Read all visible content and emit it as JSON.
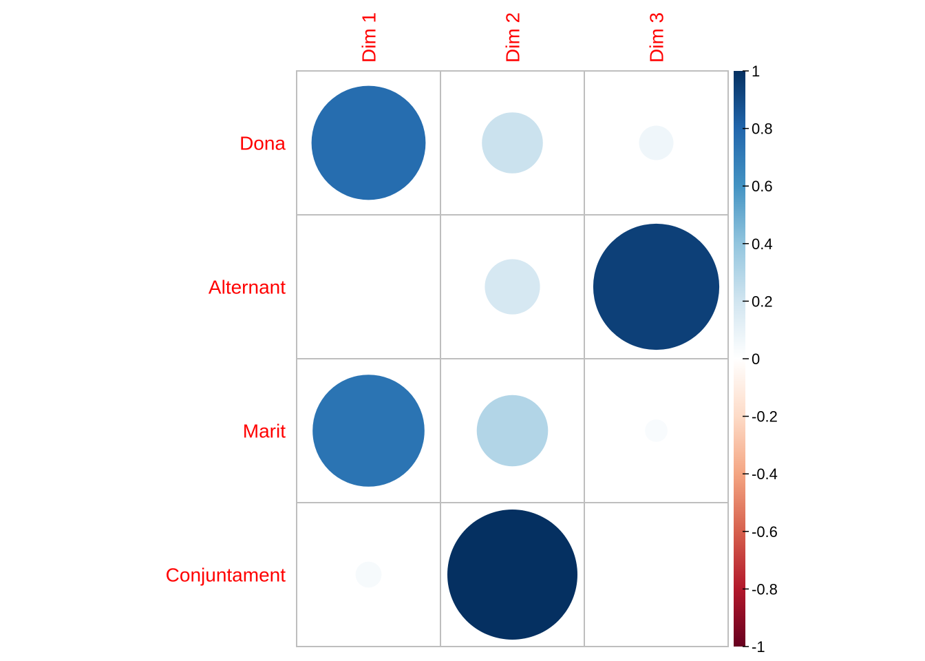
{
  "chart_data": {
    "type": "heatmap",
    "method": "circle",
    "rows": [
      "Dona",
      "Alternant",
      "Marit",
      "Conjuntament"
    ],
    "columns": [
      "Dim 1",
      "Dim 2",
      "Dim 3"
    ],
    "values": [
      [
        0.77,
        0.22,
        0.07
      ],
      [
        0.0,
        0.18,
        0.94
      ],
      [
        0.74,
        0.3,
        0.03
      ],
      [
        0.04,
        1.0,
        0.0
      ]
    ],
    "color_scale": {
      "min": -1,
      "max": 1,
      "ticks": [
        "1",
        "0.8",
        "0.6",
        "0.4",
        "0.2",
        "0",
        "-0.2",
        "-0.4",
        "-0.6",
        "-0.8",
        "-1"
      ],
      "stops": [
        "#67001F",
        "#B2182B",
        "#D6604D",
        "#F4A582",
        "#FDDBC7",
        "#FFFFFF",
        "#D1E5F0",
        "#92C5DE",
        "#4393C3",
        "#2166AC",
        "#053061"
      ]
    },
    "grid_color": "#BEBEBE",
    "label_color": "#FF0000",
    "legend": "right"
  }
}
